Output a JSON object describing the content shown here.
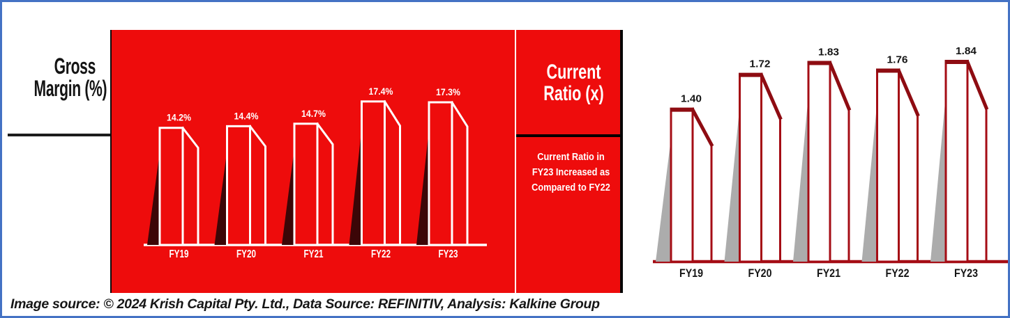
{
  "colors": {
    "frame_border": "#4472C4",
    "bright_red": "#EE0C0C",
    "dark_red_line": "#A50D15",
    "dark_red_top": "#8E0C12",
    "white_line": "#FFFFFF",
    "left_bar_shadow": "#3C0607",
    "right_bar_shadow": "#ACACAC",
    "text_black": "#151515"
  },
  "left_panel": {
    "title_line1": "Gross",
    "title_line2": "Margin (%)"
  },
  "middle_panel": {
    "title_line1": "Current",
    "title_line2": "Ratio (x)",
    "note_lines": [
      "Current Ratio in",
      "FY23 Increased as",
      "Compared to FY22"
    ]
  },
  "caption": {
    "text": "Image source: © 2024 Krish Capital Pty. Ltd., Data Source: REFINITIV, Analysis: Kalkine Group"
  },
  "chart_data": [
    {
      "type": "bar",
      "title": "Gross Margin (%)",
      "categories": [
        "FY19",
        "FY20",
        "FY21",
        "FY22",
        "FY23"
      ],
      "values": [
        14.2,
        14.4,
        14.7,
        17.4,
        17.3
      ],
      "value_labels": [
        "14.2%",
        "14.4%",
        "14.7%",
        "17.4%",
        "17.3%"
      ],
      "unit": "%",
      "ylim": [
        0,
        20
      ],
      "grid": false,
      "legend": "none",
      "style_note": "white-outline 3D bars with dark shadow on solid red background, value labels above bars, no y-axis"
    },
    {
      "type": "bar",
      "title": "Current Ratio (x)",
      "categories": [
        "FY19",
        "FY20",
        "FY21",
        "FY22",
        "FY23"
      ],
      "values": [
        1.4,
        1.72,
        1.83,
        1.76,
        1.84
      ],
      "value_labels": [
        "1.40",
        "1.72",
        "1.83",
        "1.76",
        "1.84"
      ],
      "unit": "x",
      "ylim": [
        0,
        2.1
      ],
      "grid": false,
      "legend": "none",
      "style_note": "dark-red-outline 3D bars with gray shadow on white background, value labels above bars, no y-axis"
    }
  ]
}
